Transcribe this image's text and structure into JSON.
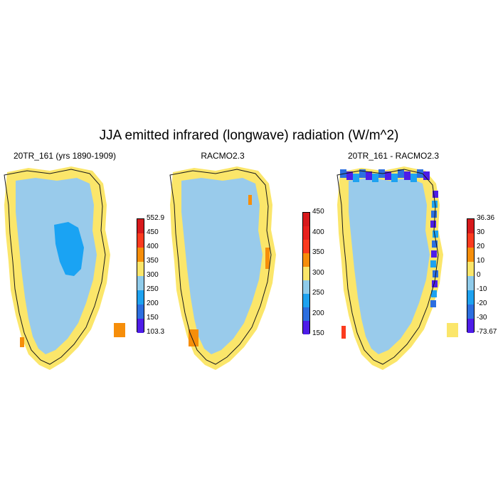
{
  "figure": {
    "title": "JJA emitted infrared (longwave) radiation (W/m^2)"
  },
  "panels": [
    {
      "title": "20TR_161 (yrs 1890-1909)",
      "colorbar": {
        "labels": [
          "552.9",
          "450",
          "400",
          "350",
          "300",
          "250",
          "200",
          "150",
          "103.3"
        ],
        "colors": [
          "#d7191c",
          "#fb3b1f",
          "#f68e0a",
          "#fbe66a",
          "#8fcbea",
          "#1ea2f0",
          "#2c6fe0",
          "#4e1de8"
        ]
      },
      "fill_main": "#99cbeb",
      "fill_inner": "#1aa3f3"
    },
    {
      "title": "RACMO2.3",
      "colorbar": {
        "labels": [
          "450",
          "400",
          "350",
          "300",
          "250",
          "200",
          "150"
        ],
        "colors": [
          "#d7191c",
          "#e8201d",
          "#fb3b1f",
          "#f68e0a",
          "#fbe66a",
          "#8fcbea",
          "#1ea2f0",
          "#2c6fe0",
          "#4e1de8"
        ]
      },
      "fill_main": "#99cbeb"
    },
    {
      "title": "20TR_161 - RACMO2.3",
      "colorbar": {
        "labels": [
          "36.36",
          "30",
          "20",
          "10",
          "0",
          "-10",
          "-20",
          "-30",
          "-73.67"
        ],
        "colors": [
          "#d7191c",
          "#fb3b1f",
          "#f68e0a",
          "#fbe66a",
          "#8fcbea",
          "#1ea2f0",
          "#2c6fe0",
          "#4e1de8"
        ]
      },
      "fill_main": "#99cbeb"
    }
  ],
  "colors": {
    "ocean_band": "#fbe66a",
    "coast_line": "#1a1a1a"
  }
}
